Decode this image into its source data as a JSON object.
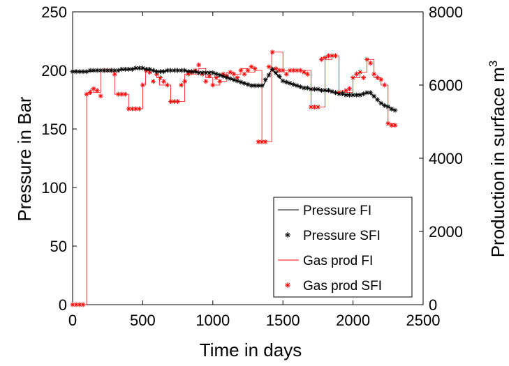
{
  "chart_data": {
    "type": "line",
    "title": "",
    "xlabel": "Time in days",
    "ylabel_left": "Pressure in Bar",
    "ylabel_right": "Production in surface m",
    "ylabel_right_superscript": "3",
    "xlim": [
      0,
      2500
    ],
    "ylim_left": [
      0,
      250
    ],
    "ylim_right": [
      0,
      8000
    ],
    "x_ticks": [
      0,
      500,
      1000,
      1500,
      2000,
      2500
    ],
    "y_left_ticks": [
      0,
      50,
      100,
      150,
      200,
      250
    ],
    "y_right_ticks": [
      0,
      2000,
      4000,
      6000,
      8000
    ],
    "grid": false,
    "legend_position": "bottom-right",
    "colors": {
      "pressure": "#000000",
      "gas": "#ff0000"
    },
    "series": [
      {
        "name": "Pressure FI",
        "axis": "left",
        "style": "line",
        "color": "#000000",
        "x": [
          0,
          100,
          200,
          300,
          400,
          480,
          520,
          600,
          700,
          800,
          900,
          1000,
          1100,
          1200,
          1300,
          1360,
          1420,
          1500,
          1600,
          1700,
          1800,
          1900,
          2000,
          2080,
          2120,
          2200,
          2300
        ],
        "y": [
          199,
          199,
          200,
          200,
          201,
          202,
          201,
          199,
          200,
          200,
          198,
          198,
          194,
          190,
          187,
          187,
          201,
          191,
          187,
          184,
          183,
          180,
          179,
          180,
          181,
          172,
          166
        ]
      },
      {
        "name": "Pressure SFI",
        "axis": "left",
        "style": "marker",
        "color": "#000000",
        "x": [
          0,
          25,
          50,
          75,
          100,
          125,
          150,
          175,
          200,
          225,
          250,
          275,
          300,
          325,
          350,
          375,
          400,
          425,
          450,
          475,
          500,
          525,
          550,
          575,
          600,
          625,
          650,
          675,
          700,
          725,
          750,
          775,
          800,
          825,
          850,
          875,
          900,
          925,
          950,
          975,
          1000,
          1025,
          1050,
          1075,
          1100,
          1125,
          1150,
          1175,
          1200,
          1225,
          1250,
          1275,
          1300,
          1325,
          1350,
          1375,
          1400,
          1425,
          1450,
          1475,
          1500,
          1525,
          1550,
          1575,
          1600,
          1625,
          1650,
          1675,
          1700,
          1725,
          1750,
          1775,
          1800,
          1825,
          1850,
          1875,
          1900,
          1925,
          1950,
          1975,
          2000,
          2025,
          2050,
          2075,
          2100,
          2125,
          2150,
          2175,
          2200,
          2225,
          2250,
          2275,
          2300
        ],
        "y": [
          199,
          199,
          199,
          199,
          199,
          200,
          200,
          200,
          200,
          200,
          200,
          200,
          200,
          200,
          201,
          201,
          201,
          201,
          202,
          202,
          202,
          201,
          201,
          200,
          199,
          199,
          199,
          200,
          200,
          200,
          200,
          200,
          200,
          199,
          199,
          199,
          198,
          198,
          198,
          198,
          198,
          197,
          196,
          195,
          194,
          193,
          192,
          191,
          190,
          189,
          188,
          187,
          187,
          187,
          187,
          192,
          196,
          201,
          198,
          195,
          191,
          190,
          189,
          188,
          187,
          186,
          185,
          185,
          184,
          184,
          184,
          183,
          183,
          183,
          182,
          181,
          180,
          180,
          179,
          179,
          179,
          179,
          179,
          180,
          181,
          181,
          178,
          175,
          172,
          170,
          169,
          167,
          166
        ]
      },
      {
        "name": "Gas prod FI",
        "axis": "right",
        "style": "step",
        "color": "#ff0000",
        "x": [
          0,
          100,
          130,
          150,
          200,
          220,
          300,
          320,
          400,
          430,
          500,
          520,
          600,
          620,
          700,
          720,
          800,
          850,
          900,
          950,
          1000,
          1050,
          1100,
          1150,
          1200,
          1250,
          1300,
          1350,
          1370,
          1420,
          1500,
          1600,
          1700,
          1750,
          1800,
          1850,
          1900,
          2000,
          2050,
          2100,
          2150,
          2200,
          2250,
          2300
        ],
        "y": [
          0,
          5750,
          5900,
          5800,
          6400,
          6400,
          5750,
          5750,
          5350,
          5350,
          6000,
          6400,
          6200,
          6000,
          5550,
          5550,
          6300,
          6300,
          6450,
          6200,
          6000,
          6100,
          6350,
          6300,
          6450,
          6350,
          6400,
          4450,
          4450,
          6900,
          6400,
          6400,
          5400,
          5400,
          6700,
          6800,
          5800,
          6200,
          6350,
          6700,
          6200,
          6000,
          4950,
          4900
        ]
      },
      {
        "name": "Gas prod SFI",
        "axis": "right",
        "style": "marker",
        "color": "#ff0000",
        "x": [
          0,
          25,
          50,
          75,
          100,
          125,
          150,
          175,
          200,
          225,
          250,
          275,
          300,
          325,
          350,
          375,
          400,
          425,
          450,
          475,
          500,
          525,
          550,
          575,
          600,
          625,
          650,
          675,
          700,
          725,
          750,
          775,
          800,
          825,
          850,
          875,
          900,
          925,
          950,
          975,
          1000,
          1025,
          1050,
          1075,
          1100,
          1125,
          1150,
          1175,
          1200,
          1225,
          1250,
          1275,
          1300,
          1325,
          1350,
          1375,
          1400,
          1425,
          1450,
          1475,
          1500,
          1525,
          1550,
          1575,
          1600,
          1625,
          1650,
          1675,
          1700,
          1725,
          1750,
          1775,
          1800,
          1825,
          1850,
          1875,
          1900,
          1925,
          1950,
          1975,
          2000,
          2025,
          2050,
          2075,
          2100,
          2125,
          2150,
          2175,
          2200,
          2225,
          2250,
          2275,
          2300
        ],
        "y": [
          0,
          0,
          0,
          0,
          5750,
          5800,
          5900,
          5850,
          5700,
          6400,
          6400,
          6400,
          6300,
          5750,
          5750,
          5750,
          5350,
          5350,
          5350,
          5350,
          6000,
          6400,
          6350,
          6100,
          6300,
          6200,
          6100,
          6000,
          5550,
          5550,
          5550,
          6000,
          6100,
          6300,
          6350,
          6400,
          6550,
          6300,
          6100,
          6250,
          6000,
          6200,
          6100,
          6300,
          6250,
          6350,
          6300,
          6200,
          6400,
          6300,
          6400,
          6500,
          6450,
          4450,
          4450,
          4450,
          6500,
          6900,
          6450,
          6400,
          6400,
          6300,
          6400,
          6400,
          6400,
          6400,
          6350,
          6300,
          5400,
          5400,
          5400,
          6700,
          6750,
          6800,
          6800,
          6800,
          5800,
          5800,
          5850,
          5900,
          6200,
          6300,
          6350,
          6200,
          6700,
          6600,
          6300,
          6200,
          6150,
          6000,
          4950,
          4900,
          4900
        ]
      }
    ]
  }
}
